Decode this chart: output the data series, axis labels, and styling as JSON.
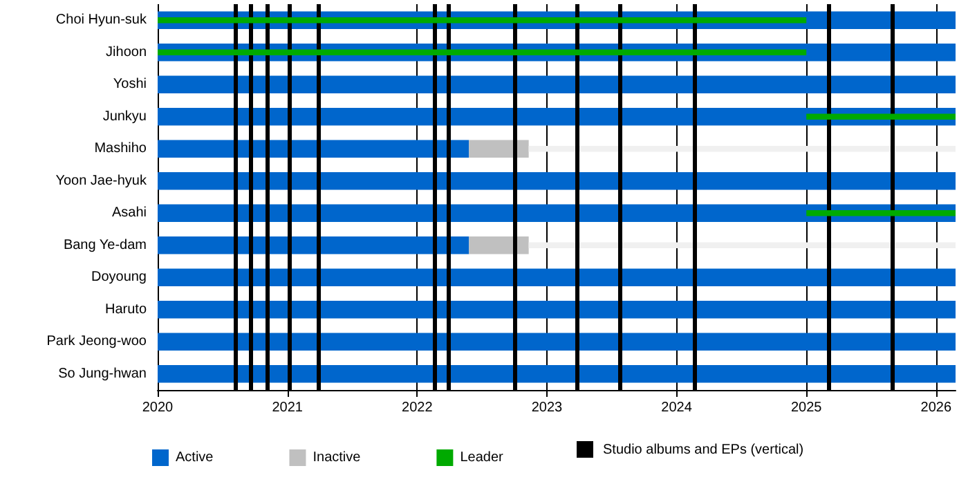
{
  "chart_data": {
    "type": "bar",
    "orientation": "horizontal",
    "categories": [
      "Choi Hyun-suk",
      "Jihoon",
      "Yoshi",
      "Junkyu",
      "Mashiho",
      "Yoon Jae-hyuk",
      "Asahi",
      "Bang Ye-dam",
      "Doyoung",
      "Haruto",
      "Park Jeong-woo",
      "So Jung-hwan"
    ],
    "series": [
      {
        "name": "Active",
        "color": "#0066cc",
        "base": [
          2020,
          2020,
          2020,
          2020,
          2020,
          2020,
          2020,
          2020,
          2020,
          2020,
          2020,
          2020
        ],
        "values": [
          6.15,
          6.15,
          6.15,
          6.15,
          2.4,
          6.15,
          6.15,
          2.4,
          6.15,
          6.15,
          6.15,
          6.15
        ]
      },
      {
        "name": "Inactive",
        "color": "#c0c0c0",
        "base": [
          null,
          null,
          null,
          null,
          2022.4,
          null,
          null,
          2022.4,
          null,
          null,
          null,
          null
        ],
        "values": [
          null,
          null,
          null,
          null,
          0.46,
          null,
          null,
          0.46,
          null,
          null,
          null,
          null
        ]
      },
      {
        "color": "#f0f0f0",
        "base": [
          null,
          null,
          null,
          null,
          2022.86,
          null,
          null,
          2022.86,
          null,
          null,
          null,
          null
        ],
        "values": [
          null,
          null,
          null,
          null,
          3.29,
          null,
          null,
          3.29,
          null,
          null,
          null,
          null
        ]
      },
      {
        "name": "Leader",
        "color": "#00aa00",
        "base": [
          2020,
          2020,
          null,
          2025,
          null,
          null,
          2025,
          null,
          null,
          null,
          null,
          null
        ],
        "values": [
          5,
          5,
          null,
          1.15,
          null,
          null,
          1.15,
          null,
          null,
          null,
          null,
          null
        ]
      }
    ],
    "xlim": [
      2020,
      2026.15
    ],
    "xticks": [
      2020,
      2021,
      2022,
      2023,
      2024,
      2025,
      2026
    ],
    "grid": "x",
    "legend": "bottom",
    "ref_lines": [
      {
        "axis": "x",
        "value": 2020.6,
        "color": "#000000"
      },
      {
        "axis": "x",
        "value": 2020.72,
        "color": "#000000"
      },
      {
        "axis": "x",
        "value": 2020.85,
        "color": "#000000"
      },
      {
        "axis": "x",
        "value": 2021.02,
        "color": "#000000"
      },
      {
        "axis": "x",
        "value": 2021.24,
        "color": "#000000"
      },
      {
        "axis": "x",
        "value": 2022.13,
        "color": "#000000"
      },
      {
        "axis": "x",
        "value": 2022.24,
        "color": "#000000"
      },
      {
        "axis": "x",
        "value": 2022.75,
        "color": "#000000"
      },
      {
        "axis": "x",
        "value": 2023.23,
        "color": "#000000"
      },
      {
        "axis": "x",
        "value": 2023.56,
        "color": "#000000"
      },
      {
        "axis": "x",
        "value": 2024.14,
        "color": "#000000"
      },
      {
        "axis": "x",
        "value": 2025.17,
        "color": "#000000"
      },
      {
        "axis": "x",
        "value": 2025.66,
        "color": "#000000"
      }
    ],
    "annotations": [
      "Studio albums and EPs (vertical)"
    ]
  }
}
